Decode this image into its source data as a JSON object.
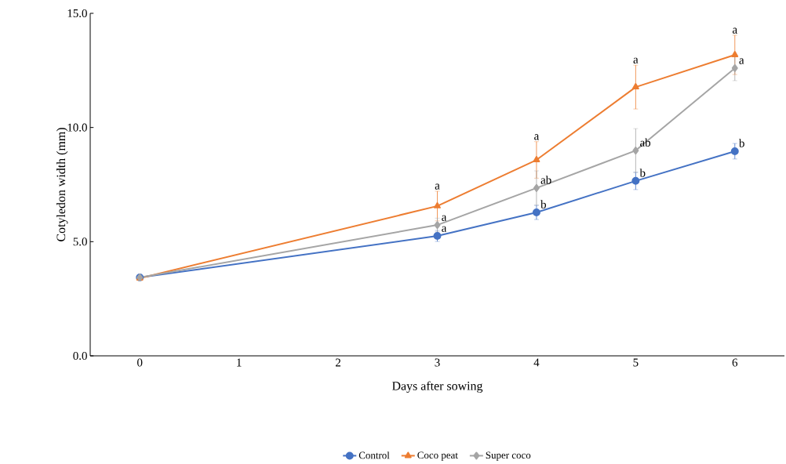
{
  "chart_data": {
    "type": "line",
    "xlabel": "Days after sowing",
    "ylabel": "Cotyledon width (mm)",
    "x": [
      0,
      3,
      4,
      5,
      6
    ],
    "xlim": [
      -0.5,
      6.5
    ],
    "xticks": [
      0,
      1,
      2,
      3,
      4,
      5,
      6
    ],
    "ylim": [
      0,
      15
    ],
    "yticks": [
      {
        "value": 0,
        "label": "0.0"
      },
      {
        "value": 5,
        "label": "5.0"
      },
      {
        "value": 10,
        "label": "10.0"
      },
      {
        "value": 15,
        "label": "15.0"
      }
    ],
    "series": [
      {
        "name": "Control",
        "color": "#4472c4",
        "marker": "circle",
        "values": [
          3.43,
          5.25,
          6.28,
          7.66,
          8.96
        ],
        "errors": [
          null,
          0.24,
          0.31,
          0.38,
          0.34
        ]
      },
      {
        "name": "Coco peat",
        "color": "#ed7d31",
        "marker": "triangle",
        "values": [
          3.4,
          6.56,
          8.58,
          11.77,
          13.18
        ],
        "errors": [
          null,
          0.65,
          0.8,
          0.96,
          0.86
        ]
      },
      {
        "name": "Super coco",
        "color": "#a5a5a5",
        "marker": "diamond",
        "values": [
          3.43,
          5.73,
          7.35,
          8.99,
          12.6
        ],
        "errors": [
          null,
          0.3,
          0.75,
          0.96,
          0.55
        ]
      }
    ],
    "annotations": [
      {
        "text": "a",
        "x": 3,
        "y": 6.56
      },
      {
        "text": "a",
        "x": 3,
        "y": 5.73
      },
      {
        "text": "a",
        "x": 3,
        "y": 5.25
      },
      {
        "text": "a",
        "x": 4,
        "y": 8.58
      },
      {
        "text": "ab",
        "x": 4,
        "y": 7.35
      },
      {
        "text": "b",
        "x": 4,
        "y": 6.28
      },
      {
        "text": "a",
        "x": 5,
        "y": 11.77
      },
      {
        "text": "ab",
        "x": 5,
        "y": 8.99
      },
      {
        "text": "b",
        "x": 5,
        "y": 7.66
      },
      {
        "text": "a",
        "x": 6,
        "y": 13.18
      },
      {
        "text": "a",
        "x": 6,
        "y": 12.6
      },
      {
        "text": "b",
        "x": 6,
        "y": 8.96
      }
    ],
    "legend": "bottom",
    "grid": false
  }
}
